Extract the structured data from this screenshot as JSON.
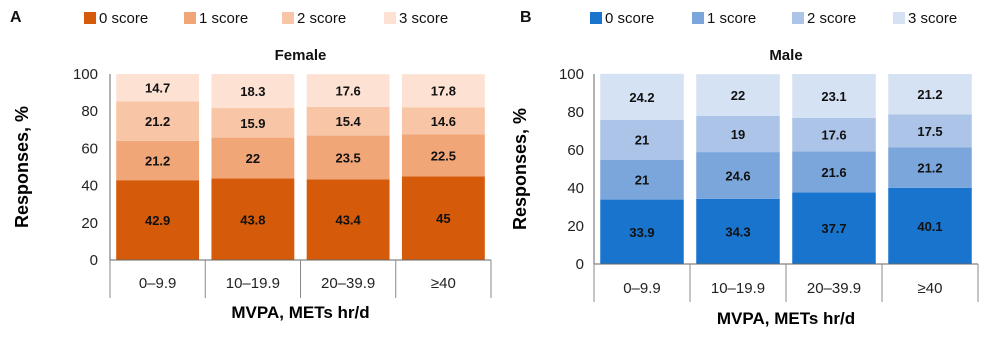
{
  "chart_data": [
    {
      "type": "bar",
      "panel": "A",
      "title": "Female",
      "xlabel": "MVPA, METs hr/d",
      "ylabel": "Responses, %",
      "ylim": [
        0,
        100
      ],
      "yticks": [
        "0",
        "20",
        "40",
        "60",
        "80",
        "100"
      ],
      "categories": [
        "0–9.9",
        "10–19.9",
        "20–39.9",
        "≥40"
      ],
      "stacked": true,
      "legend": "top",
      "series": [
        {
          "name": "0 score",
          "color": "#d55a0a",
          "values": [
            42.9,
            43.8,
            43.4,
            45
          ],
          "labels": [
            "42.9",
            "43.8",
            "43.4",
            "45"
          ]
        },
        {
          "name": "1 score",
          "color": "#f1a678",
          "values": [
            21.2,
            22,
            23.5,
            22.5
          ],
          "labels": [
            "21.2",
            "22",
            "23.5",
            "22.5"
          ]
        },
        {
          "name": "2 score",
          "color": "#f8c6a6",
          "values": [
            21.2,
            15.9,
            15.4,
            14.6
          ],
          "labels": [
            "21.2",
            "15.9",
            "15.4",
            "14.6"
          ]
        },
        {
          "name": "3 score",
          "color": "#fde2d4",
          "values": [
            14.7,
            18.3,
            17.6,
            17.8
          ],
          "labels": [
            "14.7",
            "18.3",
            "17.6",
            "17.8"
          ]
        }
      ]
    },
    {
      "type": "bar",
      "panel": "B",
      "title": "Male",
      "xlabel": "MVPA, METs hr/d",
      "ylabel": "Responses, %",
      "ylim": [
        0,
        100
      ],
      "yticks": [
        "0",
        "20",
        "40",
        "60",
        "80",
        "100"
      ],
      "categories": [
        "0–9.9",
        "10–19.9",
        "20–39.9",
        "≥40"
      ],
      "stacked": true,
      "legend": "top",
      "series": [
        {
          "name": "0 score",
          "color": "#1874cd",
          "values": [
            33.9,
            34.3,
            37.7,
            40.1
          ],
          "labels": [
            "33.9",
            "34.3",
            "37.7",
            "40.1"
          ]
        },
        {
          "name": "1 score",
          "color": "#7aa6dc",
          "values": [
            21,
            24.6,
            21.6,
            21.2
          ],
          "labels": [
            "21",
            "24.6",
            "21.6",
            "21.2"
          ]
        },
        {
          "name": "2 score",
          "color": "#acc4e8",
          "values": [
            21,
            19,
            17.6,
            17.5
          ],
          "labels": [
            "21",
            "19",
            "17.6",
            "17.5"
          ]
        },
        {
          "name": "3 score",
          "color": "#d5e2f4",
          "values": [
            24.2,
            22,
            23.1,
            21.2
          ],
          "labels": [
            "24.2",
            "22",
            "23.1",
            "21.2"
          ]
        }
      ]
    }
  ]
}
